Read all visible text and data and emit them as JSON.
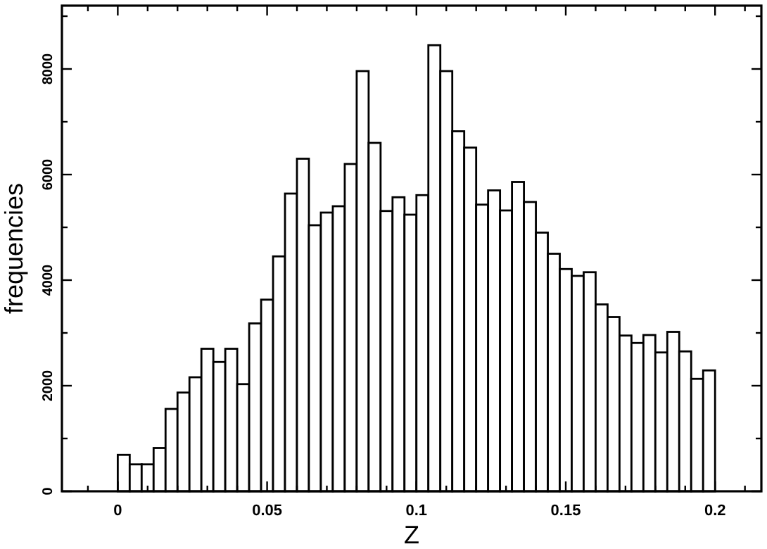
{
  "chart_data": {
    "type": "histogram",
    "xlabel": "Z",
    "ylabel": "frequencies",
    "bins": [
      0,
      0.004,
      0.008,
      0.012,
      0.016,
      0.02,
      0.024,
      0.028,
      0.032,
      0.036,
      0.04,
      0.044,
      0.048,
      0.052,
      0.056,
      0.06,
      0.064,
      0.068,
      0.072,
      0.076,
      0.08,
      0.084,
      0.088,
      0.092,
      0.096,
      0.1,
      0.104,
      0.108,
      0.112,
      0.116,
      0.12,
      0.124,
      0.128,
      0.132,
      0.136,
      0.14,
      0.144,
      0.148,
      0.152,
      0.156,
      0.16,
      0.164,
      0.168,
      0.172,
      0.176,
      0.18,
      0.184,
      0.188,
      0.192,
      0.196,
      0.2
    ],
    "values": [
      690,
      510,
      510,
      820,
      1560,
      1870,
      2160,
      2700,
      2450,
      2700,
      2030,
      3180,
      3630,
      4450,
      5640,
      6300,
      5040,
      5280,
      5400,
      6200,
      7960,
      6600,
      5310,
      5570,
      5240,
      5610,
      8450,
      7960,
      6820,
      6510,
      5430,
      5700,
      5320,
      5860,
      5480,
      4900,
      4500,
      4210,
      4080,
      4150,
      3540,
      3300,
      2950,
      2810,
      2960,
      2630,
      3020,
      2650,
      2130,
      2290
    ],
    "color": "#ffffff",
    "xlim": [
      -0.0187,
      0.2155
    ],
    "xticks": [
      {
        "value": -0.01,
        "label": null
      },
      0,
      {
        "value": 0.01,
        "label": null
      },
      {
        "value": 0.02,
        "label": null
      },
      {
        "value": 0.03,
        "label": null
      },
      {
        "value": 0.04,
        "label": null
      },
      0.05,
      {
        "value": 0.06,
        "label": null
      },
      {
        "value": 0.07,
        "label": null
      },
      {
        "value": 0.08,
        "label": null
      },
      {
        "value": 0.09,
        "label": null
      },
      0.1,
      {
        "value": 0.11,
        "label": null
      },
      {
        "value": 0.12,
        "label": null
      },
      {
        "value": 0.13,
        "label": null
      },
      {
        "value": 0.14,
        "label": null
      },
      0.15,
      {
        "value": 0.16,
        "label": null
      },
      {
        "value": 0.17,
        "label": null
      },
      {
        "value": 0.18,
        "label": null
      },
      {
        "value": 0.19,
        "label": null
      },
      0.2,
      {
        "value": 0.21,
        "label": null
      }
    ],
    "ylim": [
      0,
      9200
    ],
    "yticks": [
      0,
      {
        "value": 1000,
        "label": null
      },
      2000,
      {
        "value": 3000,
        "label": null
      },
      4000,
      {
        "value": 5000,
        "label": null
      },
      6000,
      {
        "value": 7000,
        "label": null
      },
      8000,
      {
        "value": 9000,
        "label": null
      }
    ],
    "grid": false
  }
}
